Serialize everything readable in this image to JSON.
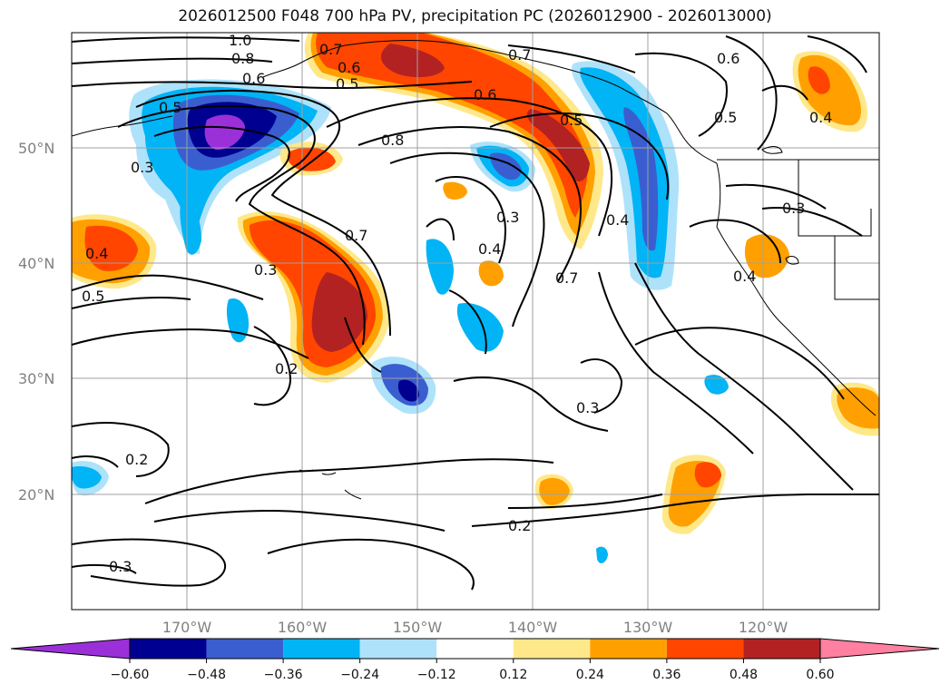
{
  "title": "2026012500 F048 700 hPa PV, precipitation PC (2026012900 - 2026013000)",
  "map": {
    "lon_range": [
      -180,
      -110
    ],
    "lat_range": [
      10,
      60
    ],
    "lat_labels": [
      "50°N",
      "40°N",
      "30°N",
      "20°N"
    ],
    "lon_labels": [
      "170°W",
      "160°W",
      "150°W",
      "140°W",
      "130°W",
      "120°W"
    ],
    "contour_labels": [
      "1.0",
      "0.8",
      "0.6",
      "0.5",
      "0.7",
      "0.6",
      "0.5",
      "0.6",
      "0.5",
      "0.5",
      "0.4",
      "0.8",
      "0.7",
      "0.6",
      "0.3",
      "0.7",
      "0.4",
      "0.3",
      "0.4",
      "0.3",
      "0.7",
      "0.4",
      "0.4",
      "0.5",
      "0.3",
      "0.2",
      "0.3",
      "0.2",
      "0.2",
      "0.3"
    ]
  },
  "colorbar": {
    "tick_labels": [
      "−0.60",
      "−0.48",
      "−0.36",
      "−0.24",
      "−0.12",
      "0.12",
      "0.24",
      "0.36",
      "0.48",
      "0.60"
    ],
    "colors": [
      "#9b30d8",
      "#000090",
      "#3a5ed0",
      "#00b4f5",
      "#aee2fa",
      "#ffffff",
      "#ffe88a",
      "#ffa000",
      "#ff4500",
      "#b22222",
      "#ff80a0"
    ]
  }
}
